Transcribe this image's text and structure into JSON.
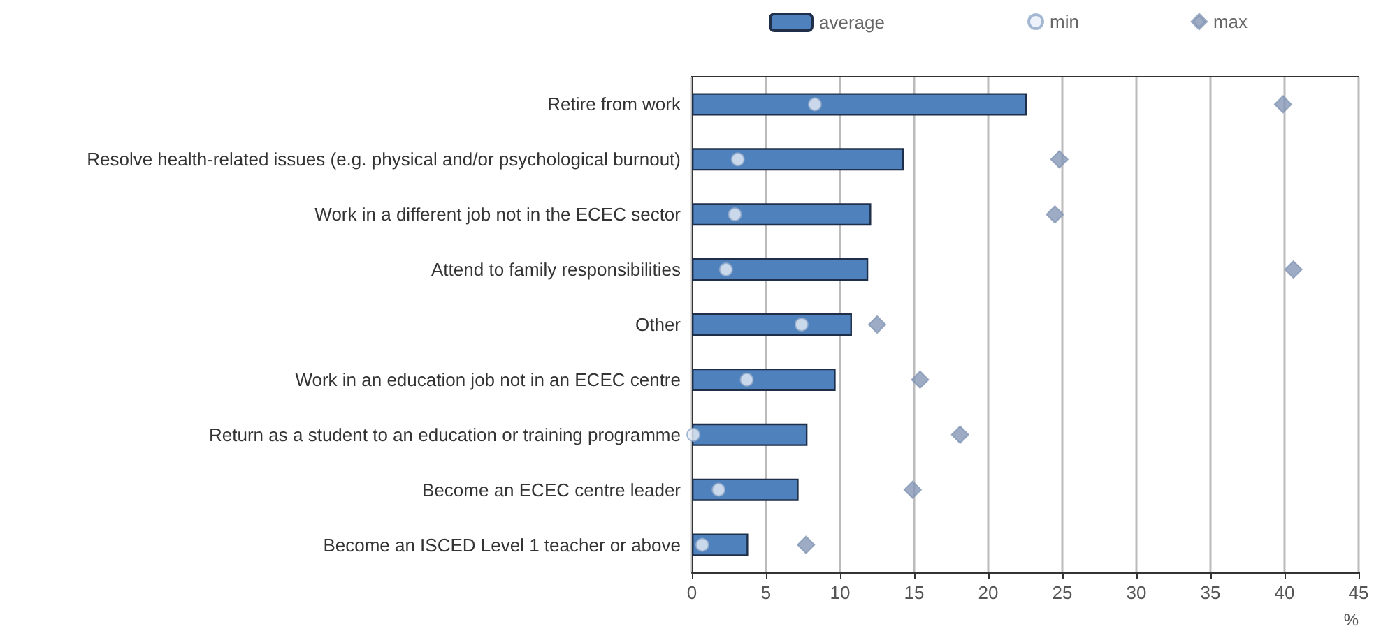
{
  "chart_data": {
    "type": "bar",
    "orientation": "horizontal",
    "xlabel": "%",
    "categories": [
      "Retire from work",
      "Resolve health-related issues (e.g. physical and/or psychological burnout)",
      "Work in a different job not in the ECEC sector",
      "Attend to family responsibilities",
      "Other",
      "Work in an education job not in an ECEC centre",
      "Return as a student to an education or training programme",
      "Become an ECEC centre leader",
      "Become an ISCED Level 1 teacher or above"
    ],
    "series": [
      {
        "name": "average",
        "color": "#4f81bd",
        "values": [
          22.6,
          14.3,
          12.1,
          11.9,
          10.8,
          9.7,
          7.8,
          7.2,
          3.8
        ]
      },
      {
        "name": "min",
        "type": "scatter",
        "marker": "circle",
        "color": "#e8eef7",
        "values": [
          8.3,
          3.1,
          2.9,
          2.3,
          7.4,
          3.7,
          0.1,
          1.8,
          0.7
        ]
      },
      {
        "name": "max",
        "type": "scatter",
        "marker": "diamond",
        "color": "#8497b5",
        "values": [
          39.9,
          24.8,
          24.5,
          40.6,
          12.5,
          15.4,
          18.1,
          14.9,
          7.7
        ]
      }
    ],
    "xlim": [
      0,
      45
    ],
    "xticks": [
      0,
      5,
      10,
      15,
      20,
      25,
      30,
      35,
      40,
      45
    ],
    "grid": "x",
    "legend": "top"
  }
}
